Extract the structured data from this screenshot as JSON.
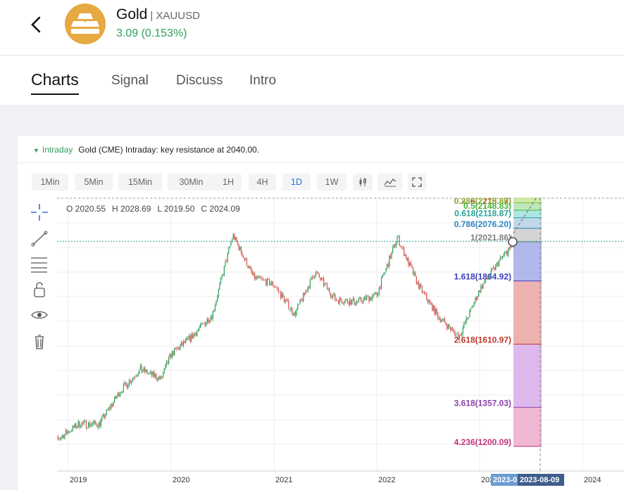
{
  "header": {
    "name": "Gold",
    "symbol": "| XAUUSD",
    "change": "3.09 (0.153%)",
    "accent": "#e7a941",
    "up_color": "#2f9e5a"
  },
  "tabs": [
    {
      "label": "Charts",
      "active": true
    },
    {
      "label": "Signal",
      "active": false
    },
    {
      "label": "Discuss",
      "active": false
    },
    {
      "label": "Intro",
      "active": false
    }
  ],
  "signal": {
    "label": "Intraday",
    "text": "Gold (CME) Intraday: key resistance at 2040.00."
  },
  "timeframes": [
    "1Min",
    "5Min",
    "15Min",
    "30Min",
    "1H",
    "4H",
    "1D",
    "1W"
  ],
  "active_timeframe": "1D",
  "toolbar_icons": [
    "crosshair-icon",
    "trendline-icon",
    "fib-lines-icon",
    "lock-icon",
    "eye-icon",
    "trash-icon"
  ],
  "ohlc": {
    "o": "O 2020.55",
    "h": "H 2028.69",
    "l": "L 2019.50",
    "c": "C 2024.09"
  },
  "chart_data": {
    "type": "line",
    "subtype": "candlestick",
    "x_ticks": [
      "2019",
      "2020",
      "2021",
      "2022",
      "2023",
      "2024"
    ],
    "crosshair_x_labels": [
      "2023-0",
      "2023-08-09"
    ],
    "last_price": 2024.09,
    "approx_close_series": [
      {
        "t": "2018.8",
        "v": 1200
      },
      {
        "t": "2019.1",
        "v": 1290
      },
      {
        "t": "2019.3",
        "v": 1290
      },
      {
        "t": "2019.5",
        "v": 1420
      },
      {
        "t": "2019.7",
        "v": 1510
      },
      {
        "t": "2019.9",
        "v": 1470
      },
      {
        "t": "2020.0",
        "v": 1570
      },
      {
        "t": "2020.2",
        "v": 1640
      },
      {
        "t": "2020.4",
        "v": 1730
      },
      {
        "t": "2020.6",
        "v": 2050
      },
      {
        "t": "2020.8",
        "v": 1880
      },
      {
        "t": "2021.0",
        "v": 1850
      },
      {
        "t": "2021.2",
        "v": 1730
      },
      {
        "t": "2021.4",
        "v": 1900
      },
      {
        "t": "2021.6",
        "v": 1790
      },
      {
        "t": "2021.8",
        "v": 1780
      },
      {
        "t": "2022.0",
        "v": 1810
      },
      {
        "t": "2022.2",
        "v": 2040
      },
      {
        "t": "2022.4",
        "v": 1850
      },
      {
        "t": "2022.6",
        "v": 1720
      },
      {
        "t": "2022.8",
        "v": 1640
      },
      {
        "t": "2023.0",
        "v": 1830
      },
      {
        "t": "2023.2",
        "v": 1950
      },
      {
        "t": "2023.35",
        "v": 2020
      }
    ],
    "fib_levels": [
      {
        "label": "0.236(2215.87)",
        "value": 2215.87,
        "color": "#c0392b",
        "fill": "#f7e0c8"
      },
      {
        "label": "0.382(2178.80)",
        "value": 2178.8,
        "color": "#8db83f",
        "fill": "#c8e8a0"
      },
      {
        "label": "0.5(2148.83)",
        "value": 2148.83,
        "color": "#49b33c",
        "fill": "#b5e5b5"
      },
      {
        "label": "0.618(2118.87)",
        "value": 2118.87,
        "color": "#2aa199",
        "fill": "#a6e3df"
      },
      {
        "label": "0.786(2076.20)",
        "value": 2076.2,
        "color": "#2e86c1",
        "fill": "#b9d4e8"
      },
      {
        "label": "1(2021.86)",
        "value": 2021.86,
        "color": "#7f7f7f",
        "fill": "#cfcfcf"
      },
      {
        "label": "1.618(1864.92)",
        "value": 1864.92,
        "color": "#3c3cc0",
        "fill": "#a9b0ea"
      },
      {
        "label": "2.618(1610.97)",
        "value": 1610.97,
        "color": "#c0392b",
        "fill": "#eaaaa6"
      },
      {
        "label": "3.618(1357.03)",
        "value": 1357.03,
        "color": "#8e44ad",
        "fill": "#d9b0ea"
      },
      {
        "label": "4.236(1200.09)",
        "value": 1200.09,
        "color": "#c2347a",
        "fill": "#eeb0cf"
      }
    ],
    "grid": true,
    "up_color": "#2f9e5a",
    "down_color": "#d9534f"
  }
}
